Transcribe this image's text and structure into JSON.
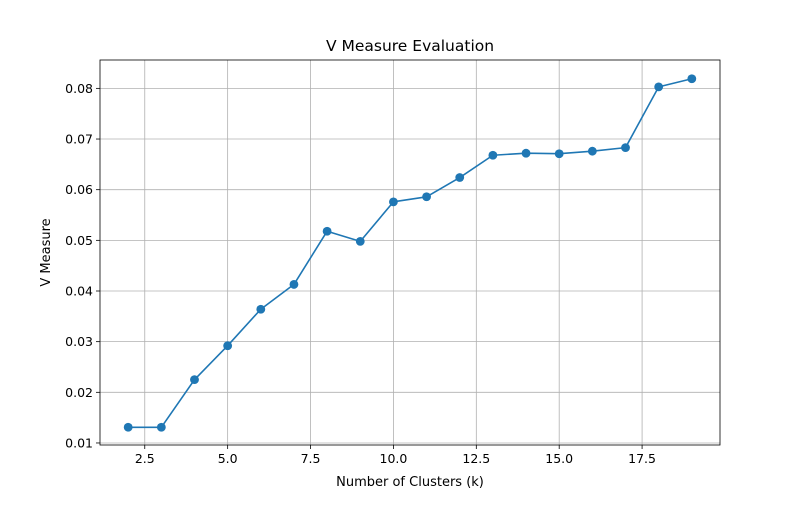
{
  "chart_data": {
    "type": "line",
    "title": "V Measure Evaluation",
    "xlabel": "Number of Clusters (k)",
    "ylabel": "V Measure",
    "xlim": [
      1.15,
      19.85
    ],
    "ylim": [
      0.0096,
      0.0856
    ],
    "xticks": [
      2.5,
      5.0,
      7.5,
      10.0,
      12.5,
      15.0,
      17.5
    ],
    "xtick_labels": [
      "2.5",
      "5.0",
      "7.5",
      "10.0",
      "12.5",
      "15.0",
      "17.5"
    ],
    "yticks": [
      0.01,
      0.02,
      0.03,
      0.04,
      0.05,
      0.06,
      0.07,
      0.08
    ],
    "ytick_labels": [
      "0.01",
      "0.02",
      "0.03",
      "0.04",
      "0.05",
      "0.06",
      "0.07",
      "0.08"
    ],
    "grid": true,
    "legend": false,
    "series": [
      {
        "color": "#1f77b4",
        "marker": "circle",
        "x": [
          2,
          3,
          4,
          5,
          6,
          7,
          8,
          9,
          10,
          11,
          12,
          13,
          14,
          15,
          16,
          17,
          18,
          19
        ],
        "y": [
          0.0131,
          0.0131,
          0.0225,
          0.0292,
          0.0364,
          0.0413,
          0.0518,
          0.0498,
          0.0576,
          0.0586,
          0.0624,
          0.0668,
          0.0672,
          0.0671,
          0.0676,
          0.0683,
          0.0803,
          0.0819
        ]
      }
    ]
  }
}
